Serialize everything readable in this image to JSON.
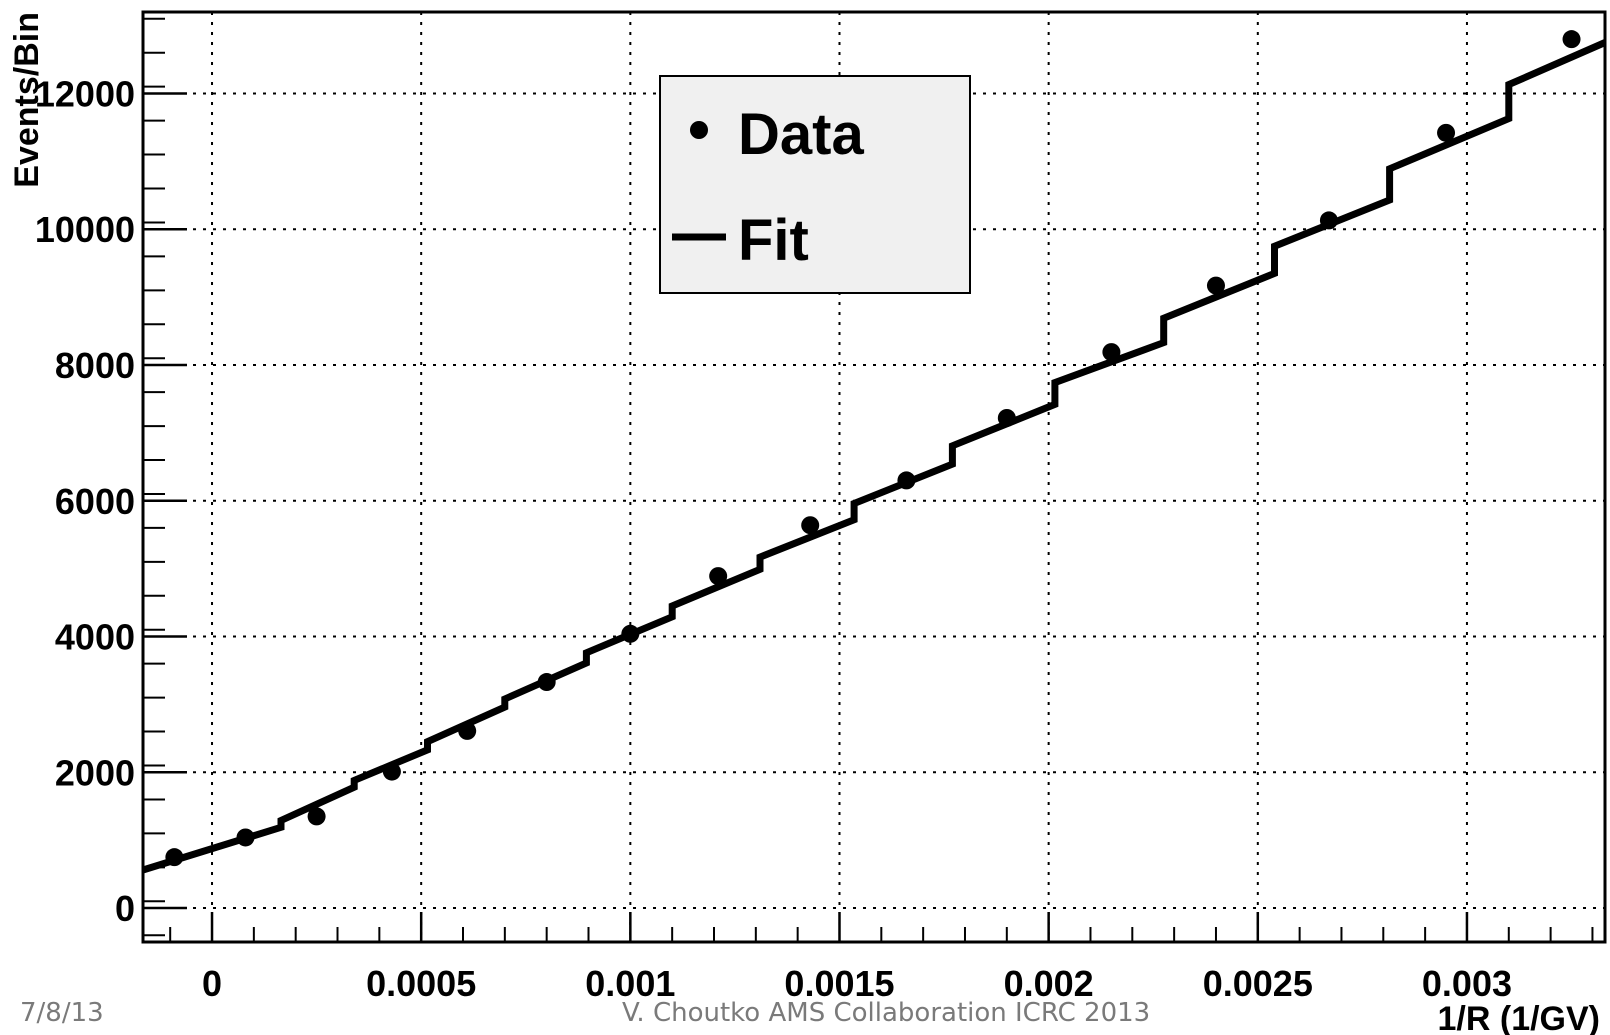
{
  "chart_data": {
    "type": "scatter",
    "title": "",
    "xlabel": "1/R (1/GV)",
    "ylabel": "Events/Bin",
    "xlim": [
      -0.000165,
      0.00333
    ],
    "ylim": [
      -500,
      13200
    ],
    "x_ticks": [
      0,
      0.0005,
      0.001,
      0.0015,
      0.002,
      0.0025,
      0.003
    ],
    "x_tick_labels": [
      "0",
      "0.0005",
      "0.001",
      "0.0015",
      "0.002",
      "0.0025",
      "0.003"
    ],
    "y_ticks": [
      0,
      2000,
      4000,
      6000,
      8000,
      10000,
      12000
    ],
    "y_tick_labels": [
      "0",
      "2000",
      "4000",
      "6000",
      "8000",
      "10000",
      "12000"
    ],
    "grid": true,
    "legend_position": "top-center",
    "series": [
      {
        "name": "Data",
        "style": "points-with-errors",
        "x": [
          -9e-05,
          8e-05,
          0.00025,
          0.00043,
          0.00061,
          0.0008,
          0.001,
          0.00121,
          0.00143,
          0.00166,
          0.0019,
          0.00215,
          0.0024,
          0.00267,
          0.00295,
          0.00325
        ],
        "y": [
          750,
          1040,
          1350,
          2010,
          2610,
          3330,
          4040,
          4890,
          5640,
          6300,
          7220,
          8190,
          9170,
          10130,
          11420,
          12800
        ],
        "yerr": [
          30,
          35,
          40,
          45,
          55,
          60,
          65,
          70,
          75,
          80,
          85,
          90,
          100,
          105,
          120,
          130
        ]
      },
      {
        "name": "Fit",
        "style": "stepped-line",
        "segments": [
          {
            "x0": -0.000165,
            "x1": 0.000165,
            "y0": 560,
            "y1": 1190
          },
          {
            "x0": 0.000165,
            "x1": 0.00034,
            "y0": 1290,
            "y1": 1780
          },
          {
            "x0": 0.00034,
            "x1": 0.000515,
            "y0": 1880,
            "y1": 2330
          },
          {
            "x0": 0.000515,
            "x1": 0.0007,
            "y0": 2450,
            "y1": 2960
          },
          {
            "x0": 0.0007,
            "x1": 0.000895,
            "y0": 3080,
            "y1": 3610
          },
          {
            "x0": 0.000895,
            "x1": 0.0011,
            "y0": 3760,
            "y1": 4290
          },
          {
            "x0": 0.0011,
            "x1": 0.00131,
            "y0": 4450,
            "y1": 4990
          },
          {
            "x0": 0.00131,
            "x1": 0.001535,
            "y0": 5170,
            "y1": 5720
          },
          {
            "x0": 0.001535,
            "x1": 0.00177,
            "y0": 5960,
            "y1": 6540
          },
          {
            "x0": 0.00177,
            "x1": 0.002015,
            "y0": 6810,
            "y1": 7420
          },
          {
            "x0": 0.002015,
            "x1": 0.002275,
            "y0": 7740,
            "y1": 8330
          },
          {
            "x0": 0.002275,
            "x1": 0.00254,
            "y0": 8690,
            "y1": 9350
          },
          {
            "x0": 0.00254,
            "x1": 0.002815,
            "y0": 9750,
            "y1": 10430
          },
          {
            "x0": 0.002815,
            "x1": 0.0031,
            "y0": 10890,
            "y1": 11630
          },
          {
            "x0": 0.0031,
            "x1": 0.00333,
            "y0": 12130,
            "y1": 12750
          }
        ]
      }
    ]
  },
  "legend": {
    "data_label": "Data",
    "fit_label": "Fit"
  },
  "footer": {
    "date": "7/8/13",
    "credit": "V. Choutko  AMS Collaboration ICRC 2013"
  }
}
